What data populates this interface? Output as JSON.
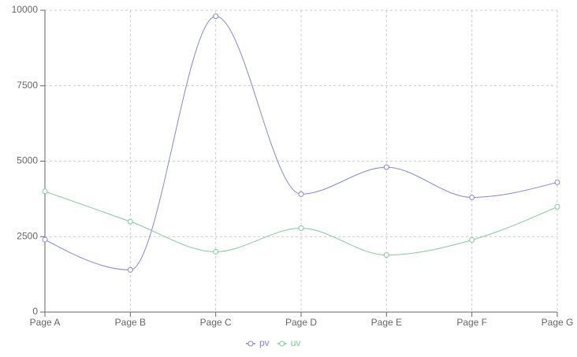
{
  "chart_data": {
    "type": "line",
    "categories": [
      "Page A",
      "Page B",
      "Page C",
      "Page D",
      "Page E",
      "Page F",
      "Page G"
    ],
    "series": [
      {
        "name": "pv",
        "color": "#8884d8",
        "values": [
          2400,
          1398,
          9800,
          3908,
          4800,
          3800,
          4300
        ]
      },
      {
        "name": "uv",
        "color": "#82ca9d",
        "values": [
          4000,
          3000,
          2000,
          2780,
          1890,
          2390,
          3490
        ]
      }
    ],
    "ylim": [
      0,
      10000
    ],
    "yticks": [
      0,
      2500,
      5000,
      7500,
      10000
    ],
    "grid": true,
    "curve": "monotone",
    "legend": "bottom"
  }
}
